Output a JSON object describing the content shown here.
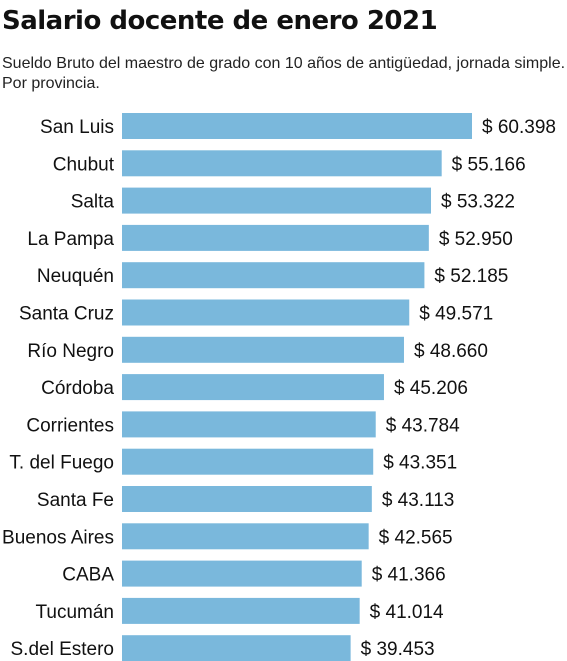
{
  "chart_data": {
    "type": "bar",
    "orientation": "horizontal",
    "title": "Salario docente de enero 2021",
    "subtitle": "Sueldo Bruto del maestro de grado con 10 años de antigüedad, jornada simple. Por provincia.",
    "categories": [
      "San Luis",
      "Chubut",
      "Salta",
      "La Pampa",
      "Neuquén",
      "Santa Cruz",
      "Río Negro",
      "Córdoba",
      "Corrientes",
      "T. del Fuego",
      "Santa Fe",
      "Buenos Aires",
      "CABA",
      "Tucumán",
      "S.del Estero"
    ],
    "values": [
      60398,
      55166,
      53322,
      52950,
      52185,
      49571,
      48660,
      45206,
      43784,
      43351,
      43113,
      42565,
      41366,
      41014,
      39453
    ],
    "value_labels": [
      "$ 60.398",
      "$ 55.166",
      "$ 53.322",
      "$ 52.950",
      "$ 52.185",
      "$ 49.571",
      "$ 48.660",
      "$ 45.206",
      "$ 43.784",
      "$ 43.351",
      "$ 43.113",
      "$ 42.565",
      "$ 41.366",
      "$ 41.014",
      "$ 39.453"
    ],
    "bar_color": "#7ab8dc",
    "grid": false
  }
}
